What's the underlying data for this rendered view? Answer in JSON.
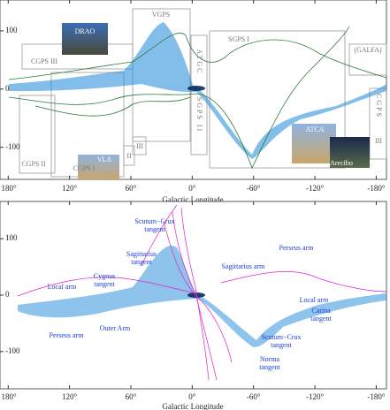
{
  "chart_data": [
    {
      "type": "heatmap",
      "x_label": "Galactic Longitude",
      "xlim": [
        188,
        -190
      ],
      "ylim": [
        -155,
        153
      ],
      "xticks": [
        {
          "value": 180,
          "label": "180°"
        },
        {
          "value": 120,
          "label": "120°"
        },
        {
          "value": 60,
          "label": "60°"
        },
        {
          "value": 0,
          "label": "0°"
        },
        {
          "value": -60,
          "label": "-60°"
        },
        {
          "value": -120,
          "label": "-120°"
        },
        {
          "value": -180,
          "label": "-180°"
        }
      ],
      "yticks": [
        100,
        0,
        -100
      ],
      "annotations": [
        "DRAO",
        "VGPS",
        "CGPS III",
        "CGPS II",
        "CGPS I",
        "II",
        "III",
        "ATGC",
        "SGPS II",
        "SGPS I",
        "(GALFA)",
        "CGPS",
        "III",
        "VLA",
        "ATCA",
        "Arecibo"
      ]
    },
    {
      "type": "heatmap",
      "x_label": "Galactic Longitude",
      "xlim": [
        188,
        -190
      ],
      "ylim": [
        -166,
        166
      ],
      "xticks": [
        {
          "value": 180,
          "label": "180°"
        },
        {
          "value": 120,
          "label": "120°"
        },
        {
          "value": 60,
          "label": "60°"
        },
        {
          "value": 0,
          "label": "0°"
        },
        {
          "value": -60,
          "label": "-60°"
        },
        {
          "value": -120,
          "label": "-120°"
        },
        {
          "value": -180,
          "label": "-180°"
        }
      ],
      "yticks": [
        100,
        0,
        -100
      ],
      "annotations": [
        [
          "Scutum−Crux",
          "tangent"
        ],
        [
          "Sagittarius",
          "tangent"
        ],
        [
          "Cygnus",
          "tangent"
        ],
        [
          "Local arm"
        ],
        [
          "Perseus arm"
        ],
        [
          "Outer Arm"
        ],
        [
          "Sagittarius arm"
        ],
        [
          "Perseus arm"
        ],
        [
          "Local arm"
        ],
        [
          "Carina",
          "tangent"
        ],
        [
          "Scutum−Crux",
          "tangent"
        ],
        [
          "Norma",
          "tangent"
        ]
      ]
    }
  ]
}
